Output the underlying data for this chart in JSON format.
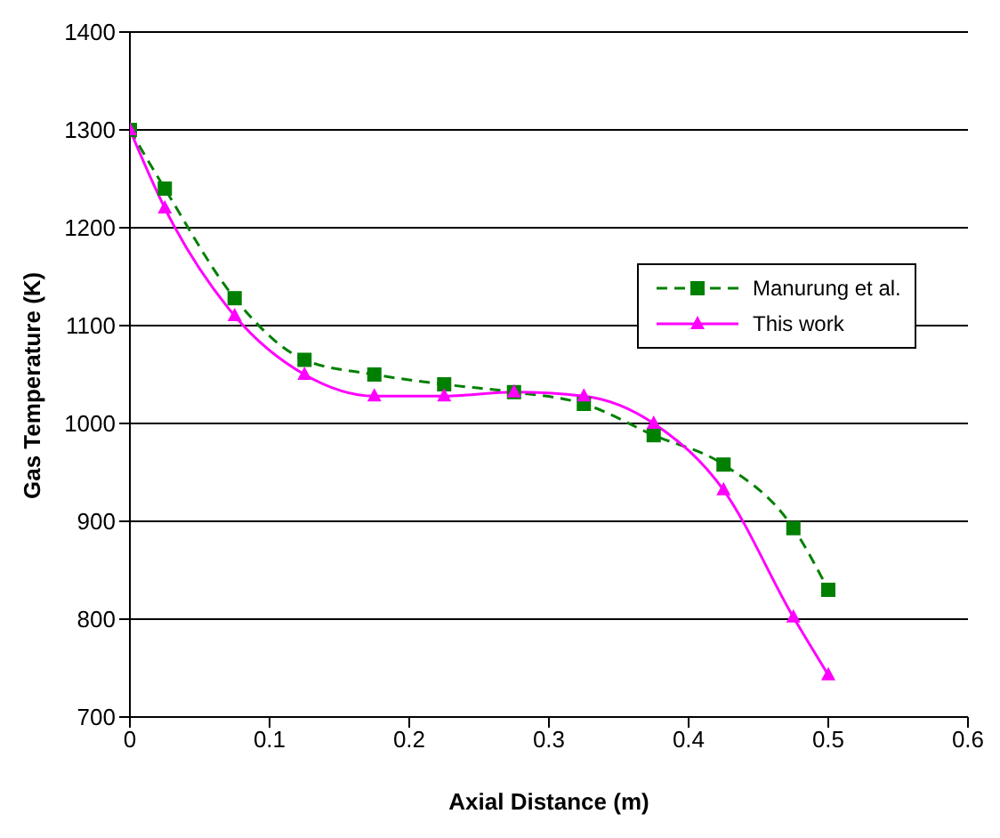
{
  "chart_data": {
    "type": "line",
    "xlabel": "Axial Distance (m)",
    "ylabel": "Gas Temperature (K)",
    "xlim": [
      0,
      0.6
    ],
    "xticks": [
      0,
      0.1,
      0.2,
      0.3,
      0.4,
      0.5,
      0.6
    ],
    "ylim": [
      700,
      1400
    ],
    "yticks": [
      700,
      800,
      900,
      1000,
      1100,
      1200,
      1300,
      1400
    ],
    "grid": "y",
    "legend": "right",
    "series": [
      {
        "name": "Manurung et al.",
        "color": "#008000",
        "marker": "square",
        "line_style": "dashed",
        "x": [
          0,
          0.025,
          0.075,
          0.125,
          0.175,
          0.225,
          0.275,
          0.325,
          0.375,
          0.425,
          0.475,
          0.5
        ],
        "values": [
          1300,
          1240,
          1128,
          1065,
          1050,
          1040,
          1032,
          1020,
          988,
          958,
          893,
          830
        ]
      },
      {
        "name": "This work",
        "color": "#ff00ff",
        "marker": "triangle",
        "line_style": "solid",
        "x": [
          0,
          0.025,
          0.075,
          0.125,
          0.175,
          0.225,
          0.275,
          0.325,
          0.375,
          0.425,
          0.475,
          0.5
        ],
        "values": [
          1300,
          1220,
          1110,
          1050,
          1028,
          1028,
          1032,
          1028,
          1000,
          932,
          802,
          743
        ]
      }
    ]
  }
}
